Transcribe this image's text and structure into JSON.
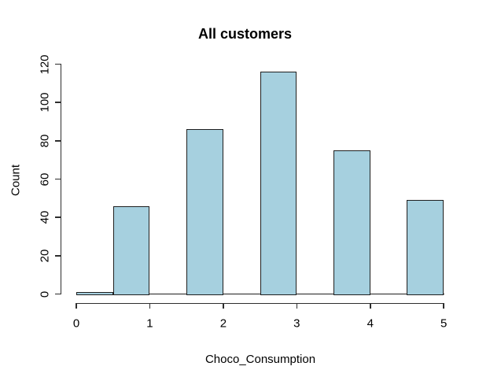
{
  "chart_data": {
    "type": "bar",
    "subtype": "histogram",
    "title": "All customers",
    "xlabel": "Choco_Consumption",
    "ylabel": "Count",
    "xlim": [
      0,
      5
    ],
    "ylim": [
      0,
      120
    ],
    "x_ticks": [
      "0",
      "1",
      "2",
      "3",
      "4",
      "5"
    ],
    "x_tick_values": [
      0,
      1,
      2,
      3,
      4,
      5
    ],
    "y_ticks": [
      "0",
      "20",
      "40",
      "60",
      "80",
      "100",
      "120"
    ],
    "y_tick_values": [
      0,
      20,
      40,
      60,
      80,
      100,
      120
    ],
    "grid": false,
    "legend_position": "none",
    "bar_fill_color": "#a6d0df",
    "bar_border_color": "#1f1f1f",
    "axis_color": "#2e2e2e",
    "bars": [
      {
        "x_start": 0.0,
        "x_end": 0.5,
        "count": 1
      },
      {
        "x_start": 0.5,
        "x_end": 1.0,
        "count": 46
      },
      {
        "x_start": 1.5,
        "x_end": 2.0,
        "count": 86
      },
      {
        "x_start": 2.5,
        "x_end": 3.0,
        "count": 116
      },
      {
        "x_start": 3.5,
        "x_end": 4.0,
        "count": 75
      },
      {
        "x_start": 4.5,
        "x_end": 5.0,
        "count": 49
      }
    ]
  }
}
